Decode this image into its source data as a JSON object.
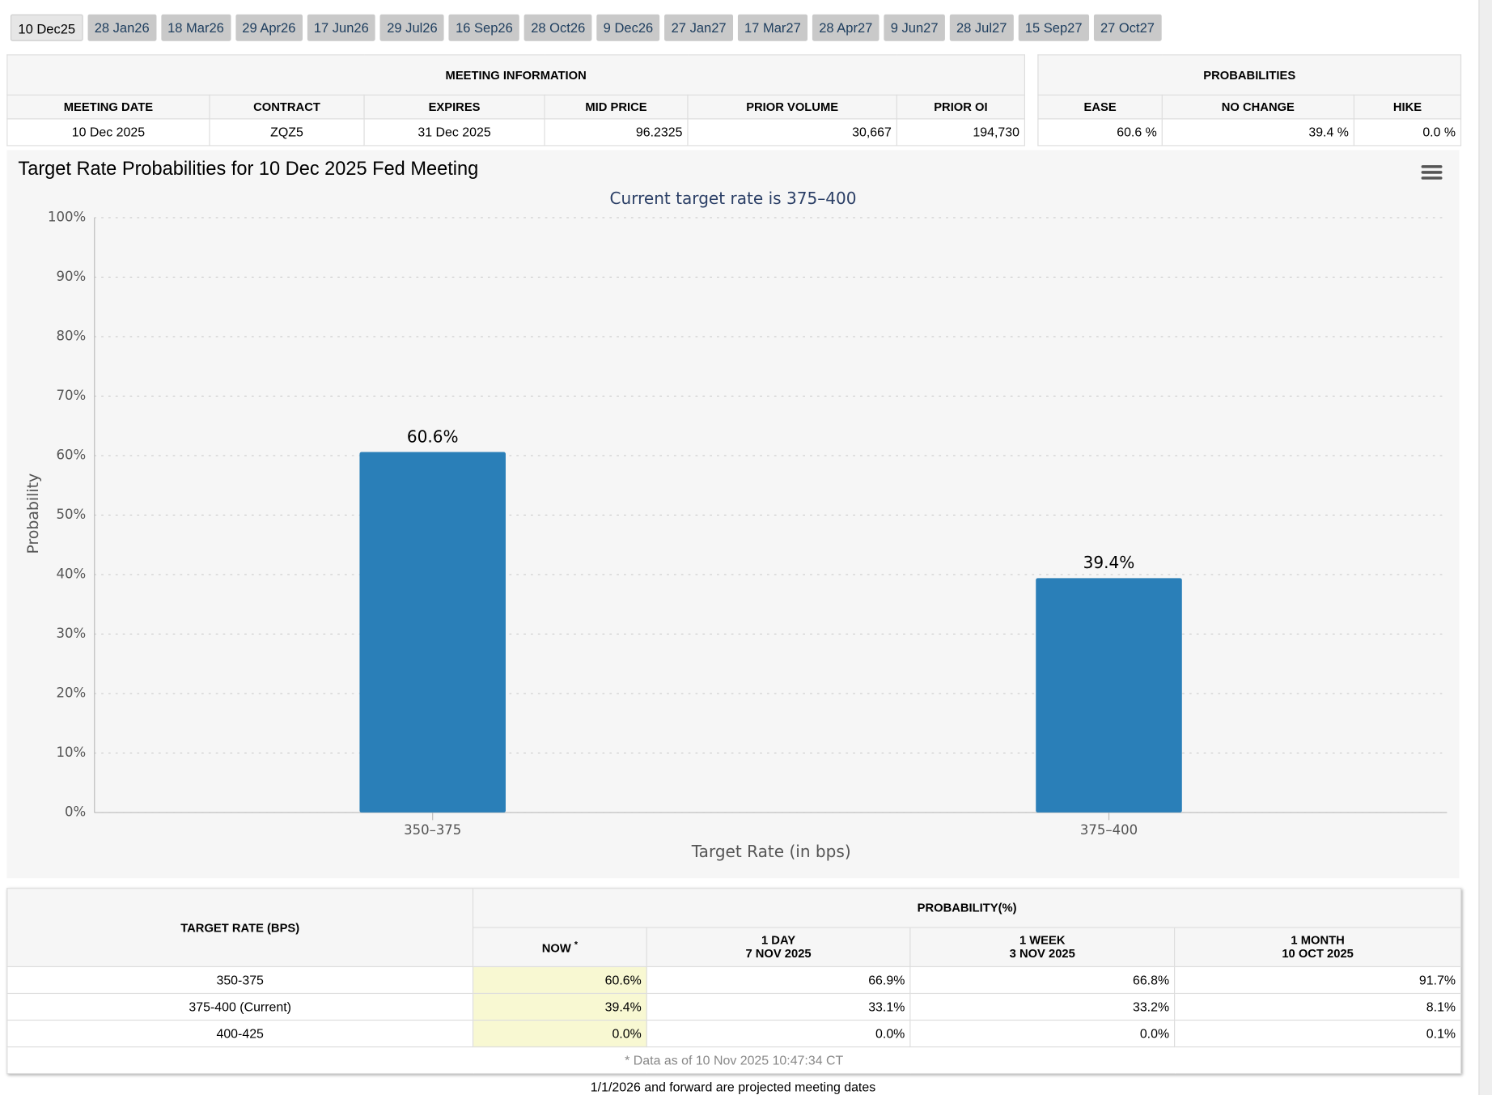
{
  "tabs": [
    "10 Dec25",
    "28 Jan26",
    "18 Mar26",
    "29 Apr26",
    "17 Jun26",
    "29 Jul26",
    "16 Sep26",
    "28 Oct26",
    "9 Dec26",
    "27 Jan27",
    "17 Mar27",
    "28 Apr27",
    "9 Jun27",
    "28 Jul27",
    "15 Sep27",
    "27 Oct27"
  ],
  "meeting_information": {
    "title": "MEETING INFORMATION",
    "columns": [
      "MEETING DATE",
      "CONTRACT",
      "EXPIRES",
      "MID PRICE",
      "PRIOR VOLUME",
      "PRIOR OI"
    ],
    "row": [
      "10 Dec 2025",
      "ZQZ5",
      "31 Dec 2025",
      "96.2325",
      "30,667",
      "194,730"
    ]
  },
  "probabilities": {
    "title": "PROBABILITIES",
    "columns": [
      "EASE",
      "NO CHANGE",
      "HIKE"
    ],
    "row": [
      "60.6 %",
      "39.4 %",
      "0.0 %"
    ]
  },
  "chart_data": {
    "type": "bar",
    "title": "Target Rate Probabilities for 10 Dec 2025 Fed Meeting",
    "subtitle": "Current target rate is 375–400",
    "x_label": "Target Rate (in bps)",
    "y_label": "Probability",
    "categories": [
      "350–375",
      "375–400"
    ],
    "values": [
      60.6,
      39.4
    ],
    "value_labels": [
      "60.6%",
      "39.4%"
    ],
    "color": "#2a7fb8",
    "ylim": [
      0,
      100
    ],
    "yticks": [
      {
        "value": 0,
        "label": "0%"
      },
      {
        "value": 10,
        "label": "10%"
      },
      {
        "value": 20,
        "label": "20%"
      },
      {
        "value": 30,
        "label": "30%"
      },
      {
        "value": 40,
        "label": "40%"
      },
      {
        "value": 50,
        "label": "50%"
      },
      {
        "value": 60,
        "label": "60%"
      },
      {
        "value": 70,
        "label": "70%"
      },
      {
        "value": 80,
        "label": "80%"
      },
      {
        "value": 90,
        "label": "90%"
      },
      {
        "value": 100,
        "label": "100%"
      }
    ],
    "grid": true
  },
  "probability_table": {
    "row_header": "TARGET RATE (BPS)",
    "group_header": "PROBABILITY(%)",
    "columns": [
      {
        "label": "NOW",
        "note": "*"
      },
      {
        "label": "1 DAY",
        "date": "7 NOV 2025"
      },
      {
        "label": "1 WEEK",
        "date": "3 NOV 2025"
      },
      {
        "label": "1 MONTH",
        "date": "10 OCT 2025"
      }
    ],
    "rows": [
      [
        "350-375",
        "60.6%",
        "66.9%",
        "66.8%",
        "91.7%"
      ],
      [
        "375-400 (Current)",
        "39.4%",
        "33.1%",
        "33.2%",
        "8.1%"
      ],
      [
        "400-425",
        "0.0%",
        "0.0%",
        "0.0%",
        "0.1%"
      ]
    ],
    "footnote": "* Data as of 10 Nov 2025 10:47:34 CT"
  },
  "footer_note": "1/1/2026 and forward are projected meeting dates"
}
